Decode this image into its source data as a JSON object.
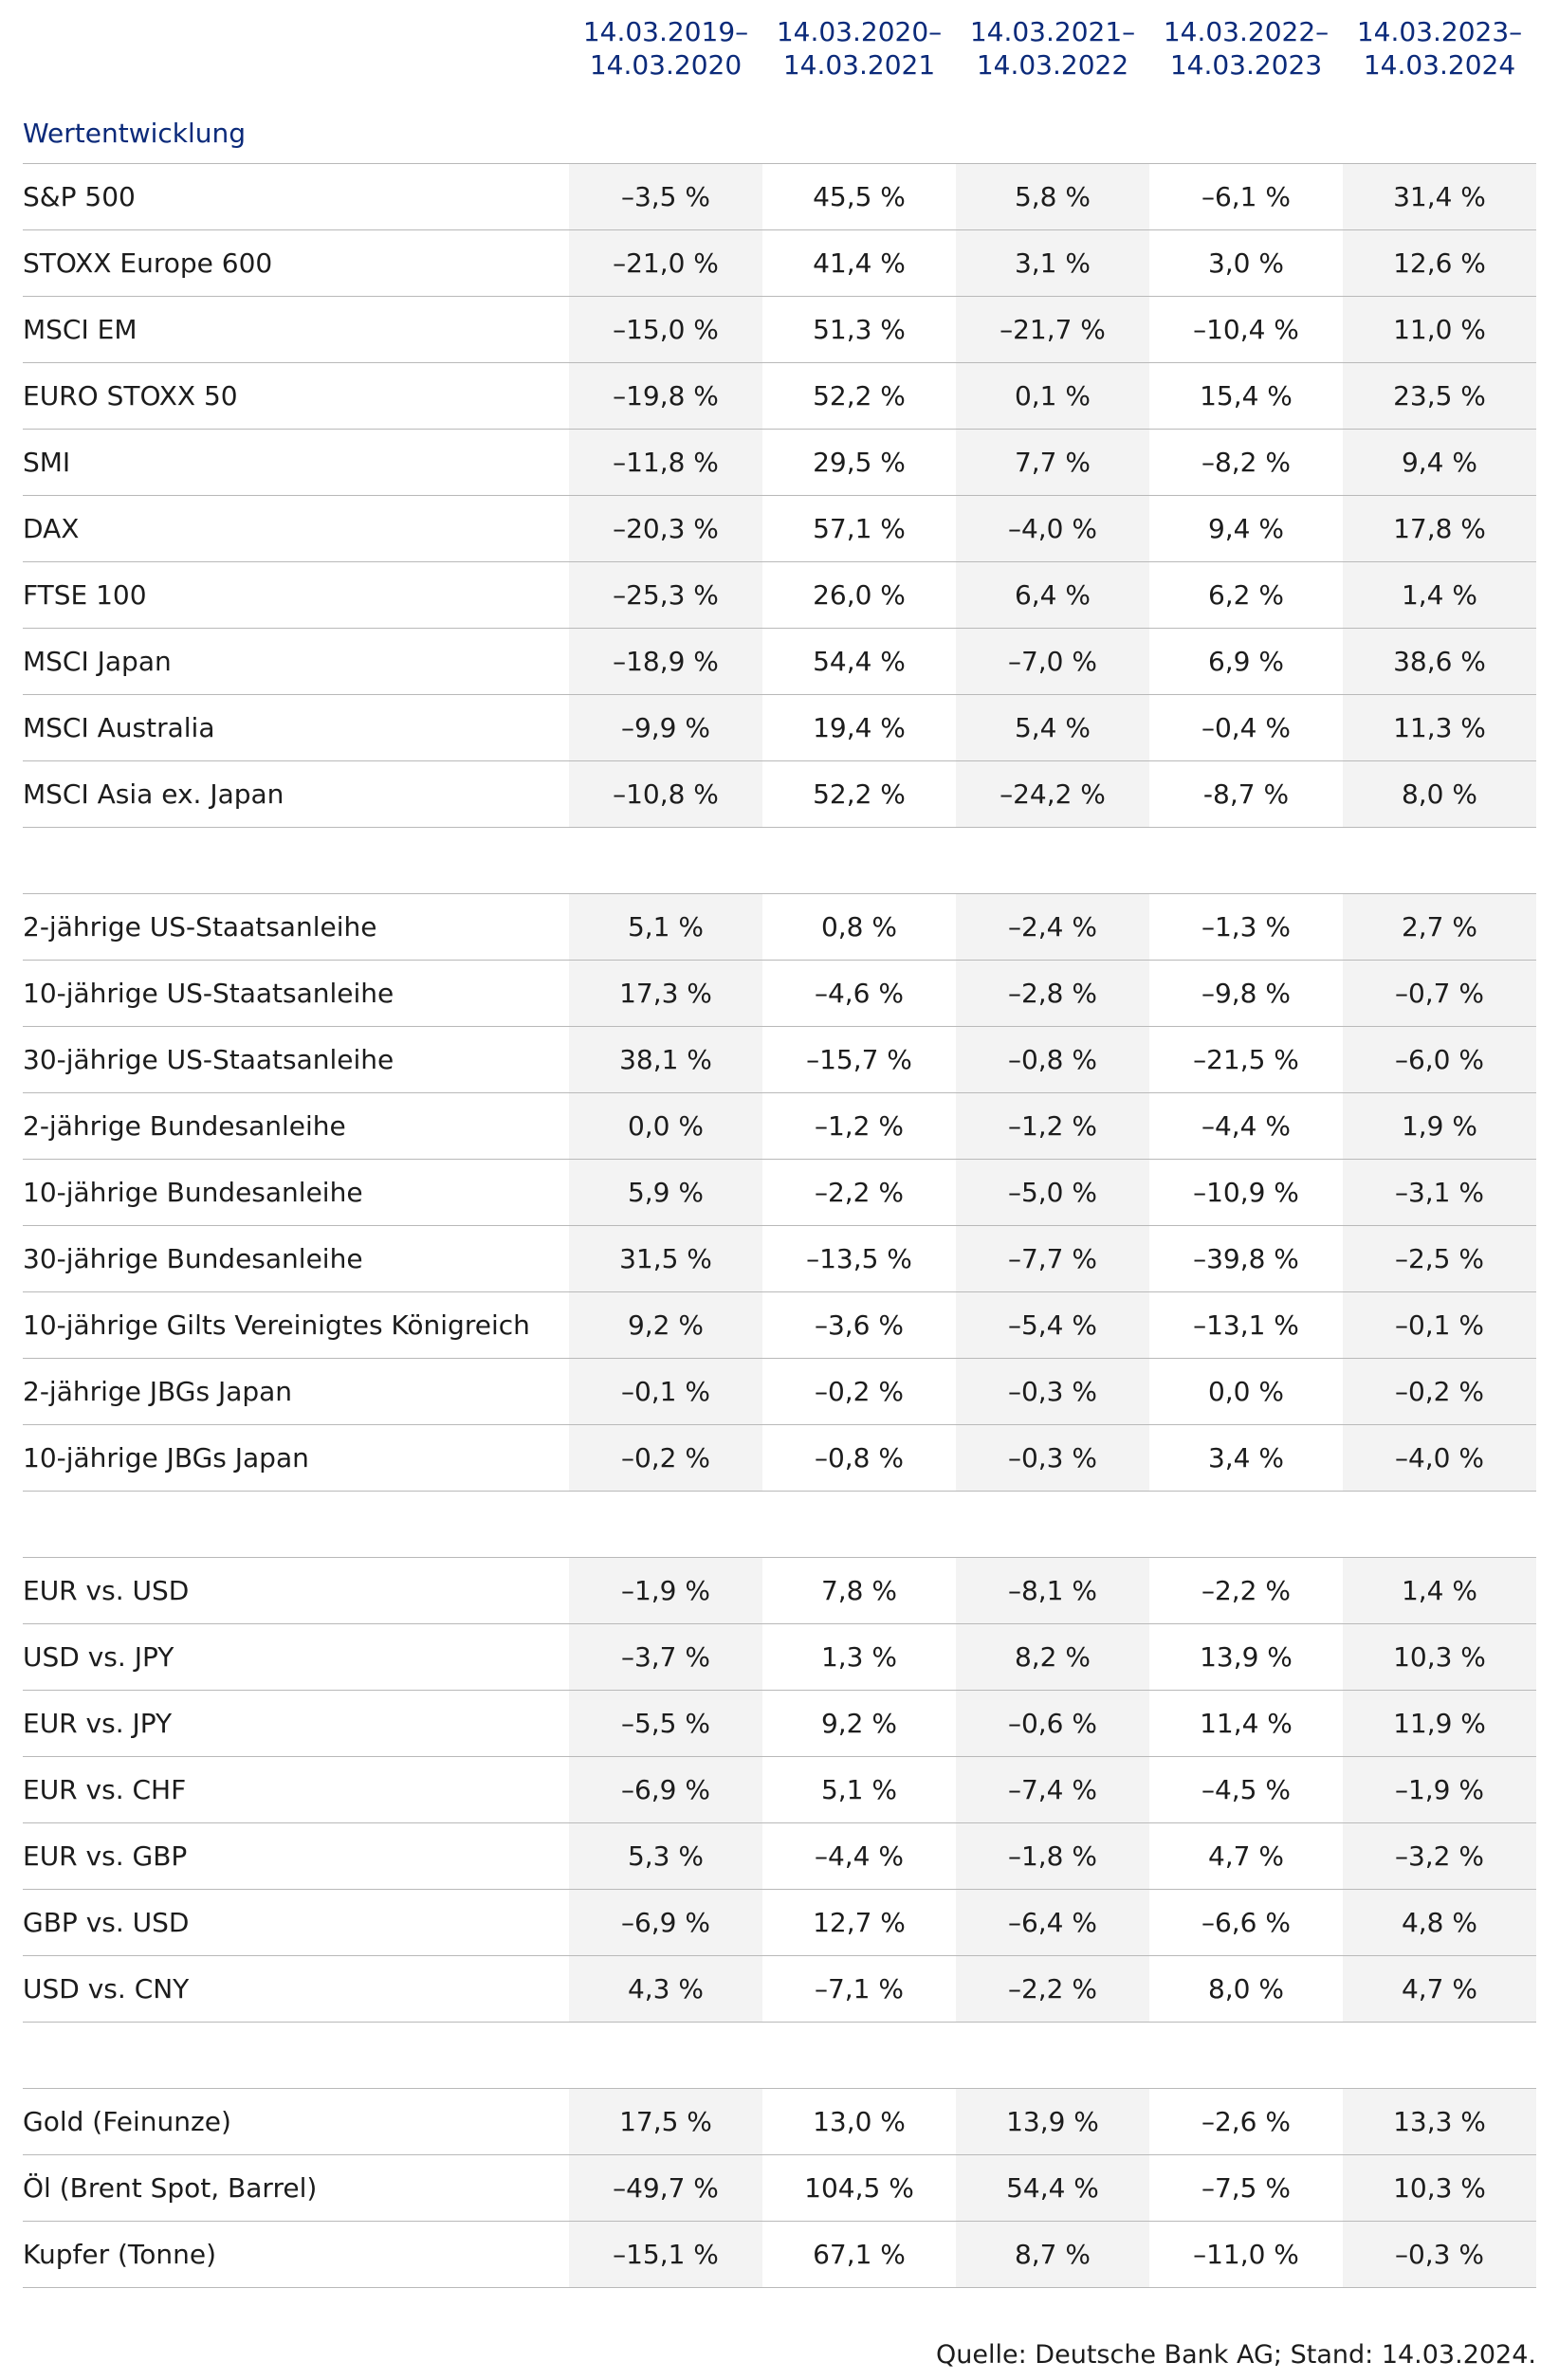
{
  "periods": [
    "14.03.2019–\n14.03.2020",
    "14.03.2020–\n14.03.2021",
    "14.03.2021–\n14.03.2022",
    "14.03.2022–\n14.03.2023",
    "14.03.2023–\n14.03.2024"
  ],
  "title": "Wertentwicklung",
  "sections": [
    {
      "rows": [
        {
          "label": "S&P 500",
          "values": [
            "–3,5 %",
            "45,5 %",
            "5,8 %",
            "–6,1 %",
            "31,4 %"
          ]
        },
        {
          "label": "STOXX Europe 600",
          "values": [
            "–21,0 %",
            "41,4 %",
            "3,1 %",
            "3,0 %",
            "12,6 %"
          ]
        },
        {
          "label": "MSCI EM",
          "values": [
            "–15,0 %",
            "51,3 %",
            "–21,7 %",
            "–10,4 %",
            "11,0 %"
          ]
        },
        {
          "label": "EURO STOXX 50",
          "values": [
            "–19,8 %",
            "52,2 %",
            "0,1 %",
            "15,4 %",
            "23,5 %"
          ]
        },
        {
          "label": "SMI",
          "values": [
            "–11,8 %",
            "29,5 %",
            "7,7 %",
            "–8,2 %",
            "9,4 %"
          ]
        },
        {
          "label": "DAX",
          "values": [
            "–20,3 %",
            "57,1 %",
            "–4,0 %",
            "9,4 %",
            "17,8 %"
          ]
        },
        {
          "label": "FTSE 100",
          "values": [
            "–25,3 %",
            "26,0 %",
            "6,4 %",
            "6,2 %",
            "1,4 %"
          ]
        },
        {
          "label": "MSCI Japan",
          "values": [
            "–18,9 %",
            "54,4 %",
            "–7,0 %",
            "6,9 %",
            "38,6 %"
          ]
        },
        {
          "label": "MSCI Australia",
          "values": [
            "–9,9 %",
            "19,4 %",
            "5,4 %",
            "–0,4 %",
            "11,3 %"
          ]
        },
        {
          "label": "MSCI Asia ex. Japan",
          "values": [
            "–10,8 %",
            "52,2 %",
            "–24,2 %",
            "-8,7 %",
            "8,0 %"
          ]
        }
      ]
    },
    {
      "rows": [
        {
          "label": "2-jährige US-Staatsanleihe",
          "values": [
            "5,1 %",
            "0,8 %",
            "–2,4 %",
            "–1,3 %",
            "2,7 %"
          ]
        },
        {
          "label": "10-jährige US-Staatsanleihe",
          "values": [
            "17,3 %",
            "–4,6 %",
            "–2,8 %",
            "–9,8 %",
            "–0,7 %"
          ]
        },
        {
          "label": "30-jährige US-Staatsanleihe",
          "values": [
            "38,1 %",
            "–15,7 %",
            "–0,8 %",
            "–21,5 %",
            "–6,0 %"
          ]
        },
        {
          "label": "2-jährige Bundesanleihe",
          "values": [
            "0,0 %",
            "–1,2 %",
            "–1,2 %",
            "–4,4 %",
            "1,9 %"
          ]
        },
        {
          "label": "10-jährige Bundesanleihe",
          "values": [
            "5,9 %",
            "–2,2 %",
            "–5,0 %",
            "–10,9 %",
            "–3,1 %"
          ]
        },
        {
          "label": "30-jährige Bundesanleihe",
          "values": [
            "31,5 %",
            "–13,5 %",
            "–7,7 %",
            "–39,8 %",
            "–2,5 %"
          ]
        },
        {
          "label": "10-jährige Gilts Vereinigtes Königreich",
          "values": [
            "9,2 %",
            "–3,6 %",
            "–5,4 %",
            "–13,1 %",
            "–0,1 %"
          ]
        },
        {
          "label": "2-jährige JBGs Japan",
          "values": [
            "–0,1 %",
            "–0,2 %",
            "–0,3 %",
            "0,0 %",
            "–0,2 %"
          ]
        },
        {
          "label": "10-jährige JBGs Japan",
          "values": [
            "–0,2 %",
            "–0,8 %",
            "–0,3 %",
            "3,4 %",
            "–4,0 %"
          ]
        }
      ]
    },
    {
      "rows": [
        {
          "label": "EUR vs. USD",
          "values": [
            "–1,9 %",
            "7,8 %",
            "–8,1 %",
            "–2,2 %",
            "1,4 %"
          ]
        },
        {
          "label": "USD vs. JPY",
          "values": [
            "–3,7 %",
            "1,3 %",
            "8,2 %",
            "13,9 %",
            "10,3 %"
          ]
        },
        {
          "label": "EUR vs. JPY",
          "values": [
            "–5,5 %",
            "9,2 %",
            "–0,6 %",
            "11,4 %",
            "11,9 %"
          ]
        },
        {
          "label": "EUR vs. CHF",
          "values": [
            "–6,9 %",
            "5,1 %",
            "–7,4 %",
            "–4,5 %",
            "–1,9 %"
          ]
        },
        {
          "label": "EUR vs. GBP",
          "values": [
            "5,3 %",
            "–4,4 %",
            "–1,8 %",
            "4,7 %",
            "–3,2 %"
          ]
        },
        {
          "label": "GBP vs. USD",
          "values": [
            "–6,9 %",
            "12,7 %",
            "–6,4 %",
            "–6,6 %",
            "4,8 %"
          ]
        },
        {
          "label": "USD vs. CNY",
          "values": [
            "4,3 %",
            "–7,1 %",
            "–2,2 %",
            "8,0 %",
            "4,7 %"
          ]
        }
      ]
    },
    {
      "rows": [
        {
          "label": "Gold (Feinunze)",
          "values": [
            "17,5 %",
            "13,0 %",
            "13,9 %",
            "–2,6 %",
            "13,3 %"
          ]
        },
        {
          "label": "Öl (Brent Spot, Barrel)",
          "values": [
            "–49,7 %",
            "104,5 %",
            "54,4 %",
            "–7,5 %",
            "10,3 %"
          ]
        },
        {
          "label": "Kupfer (Tonne)",
          "values": [
            "–15,1 %",
            "67,1 %",
            "8,7 %",
            "–11,0 %",
            "–0,3 %"
          ]
        }
      ]
    }
  ],
  "source": "Quelle: Deutsche Bank AG;  Stand: 14.03.2024."
}
